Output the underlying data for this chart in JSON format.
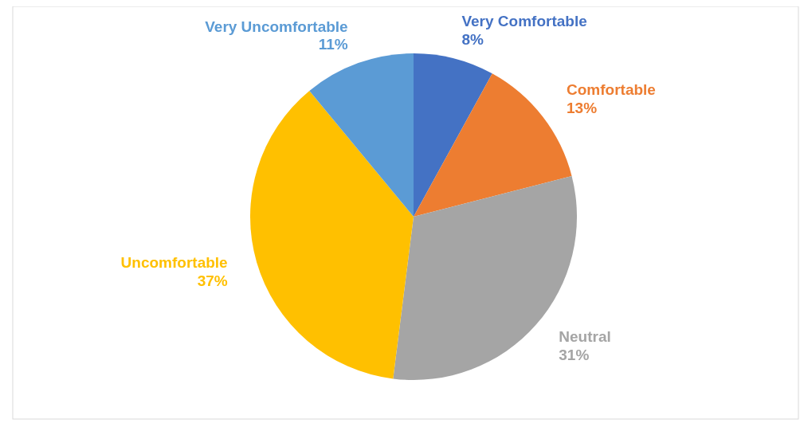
{
  "chart_data": {
    "type": "pie",
    "categories": [
      "Very Comfortable",
      "Comfortable",
      "Neutral",
      "Uncomfortable",
      "Very Uncomfortable"
    ],
    "values": [
      8,
      13,
      31,
      37,
      11
    ],
    "colors": [
      "#4472c4",
      "#ed7d31",
      "#a5a5a5",
      "#ffc000",
      "#5b9bd5"
    ],
    "value_labels": [
      "8%",
      "13%",
      "31%",
      "37%",
      "11%"
    ]
  }
}
